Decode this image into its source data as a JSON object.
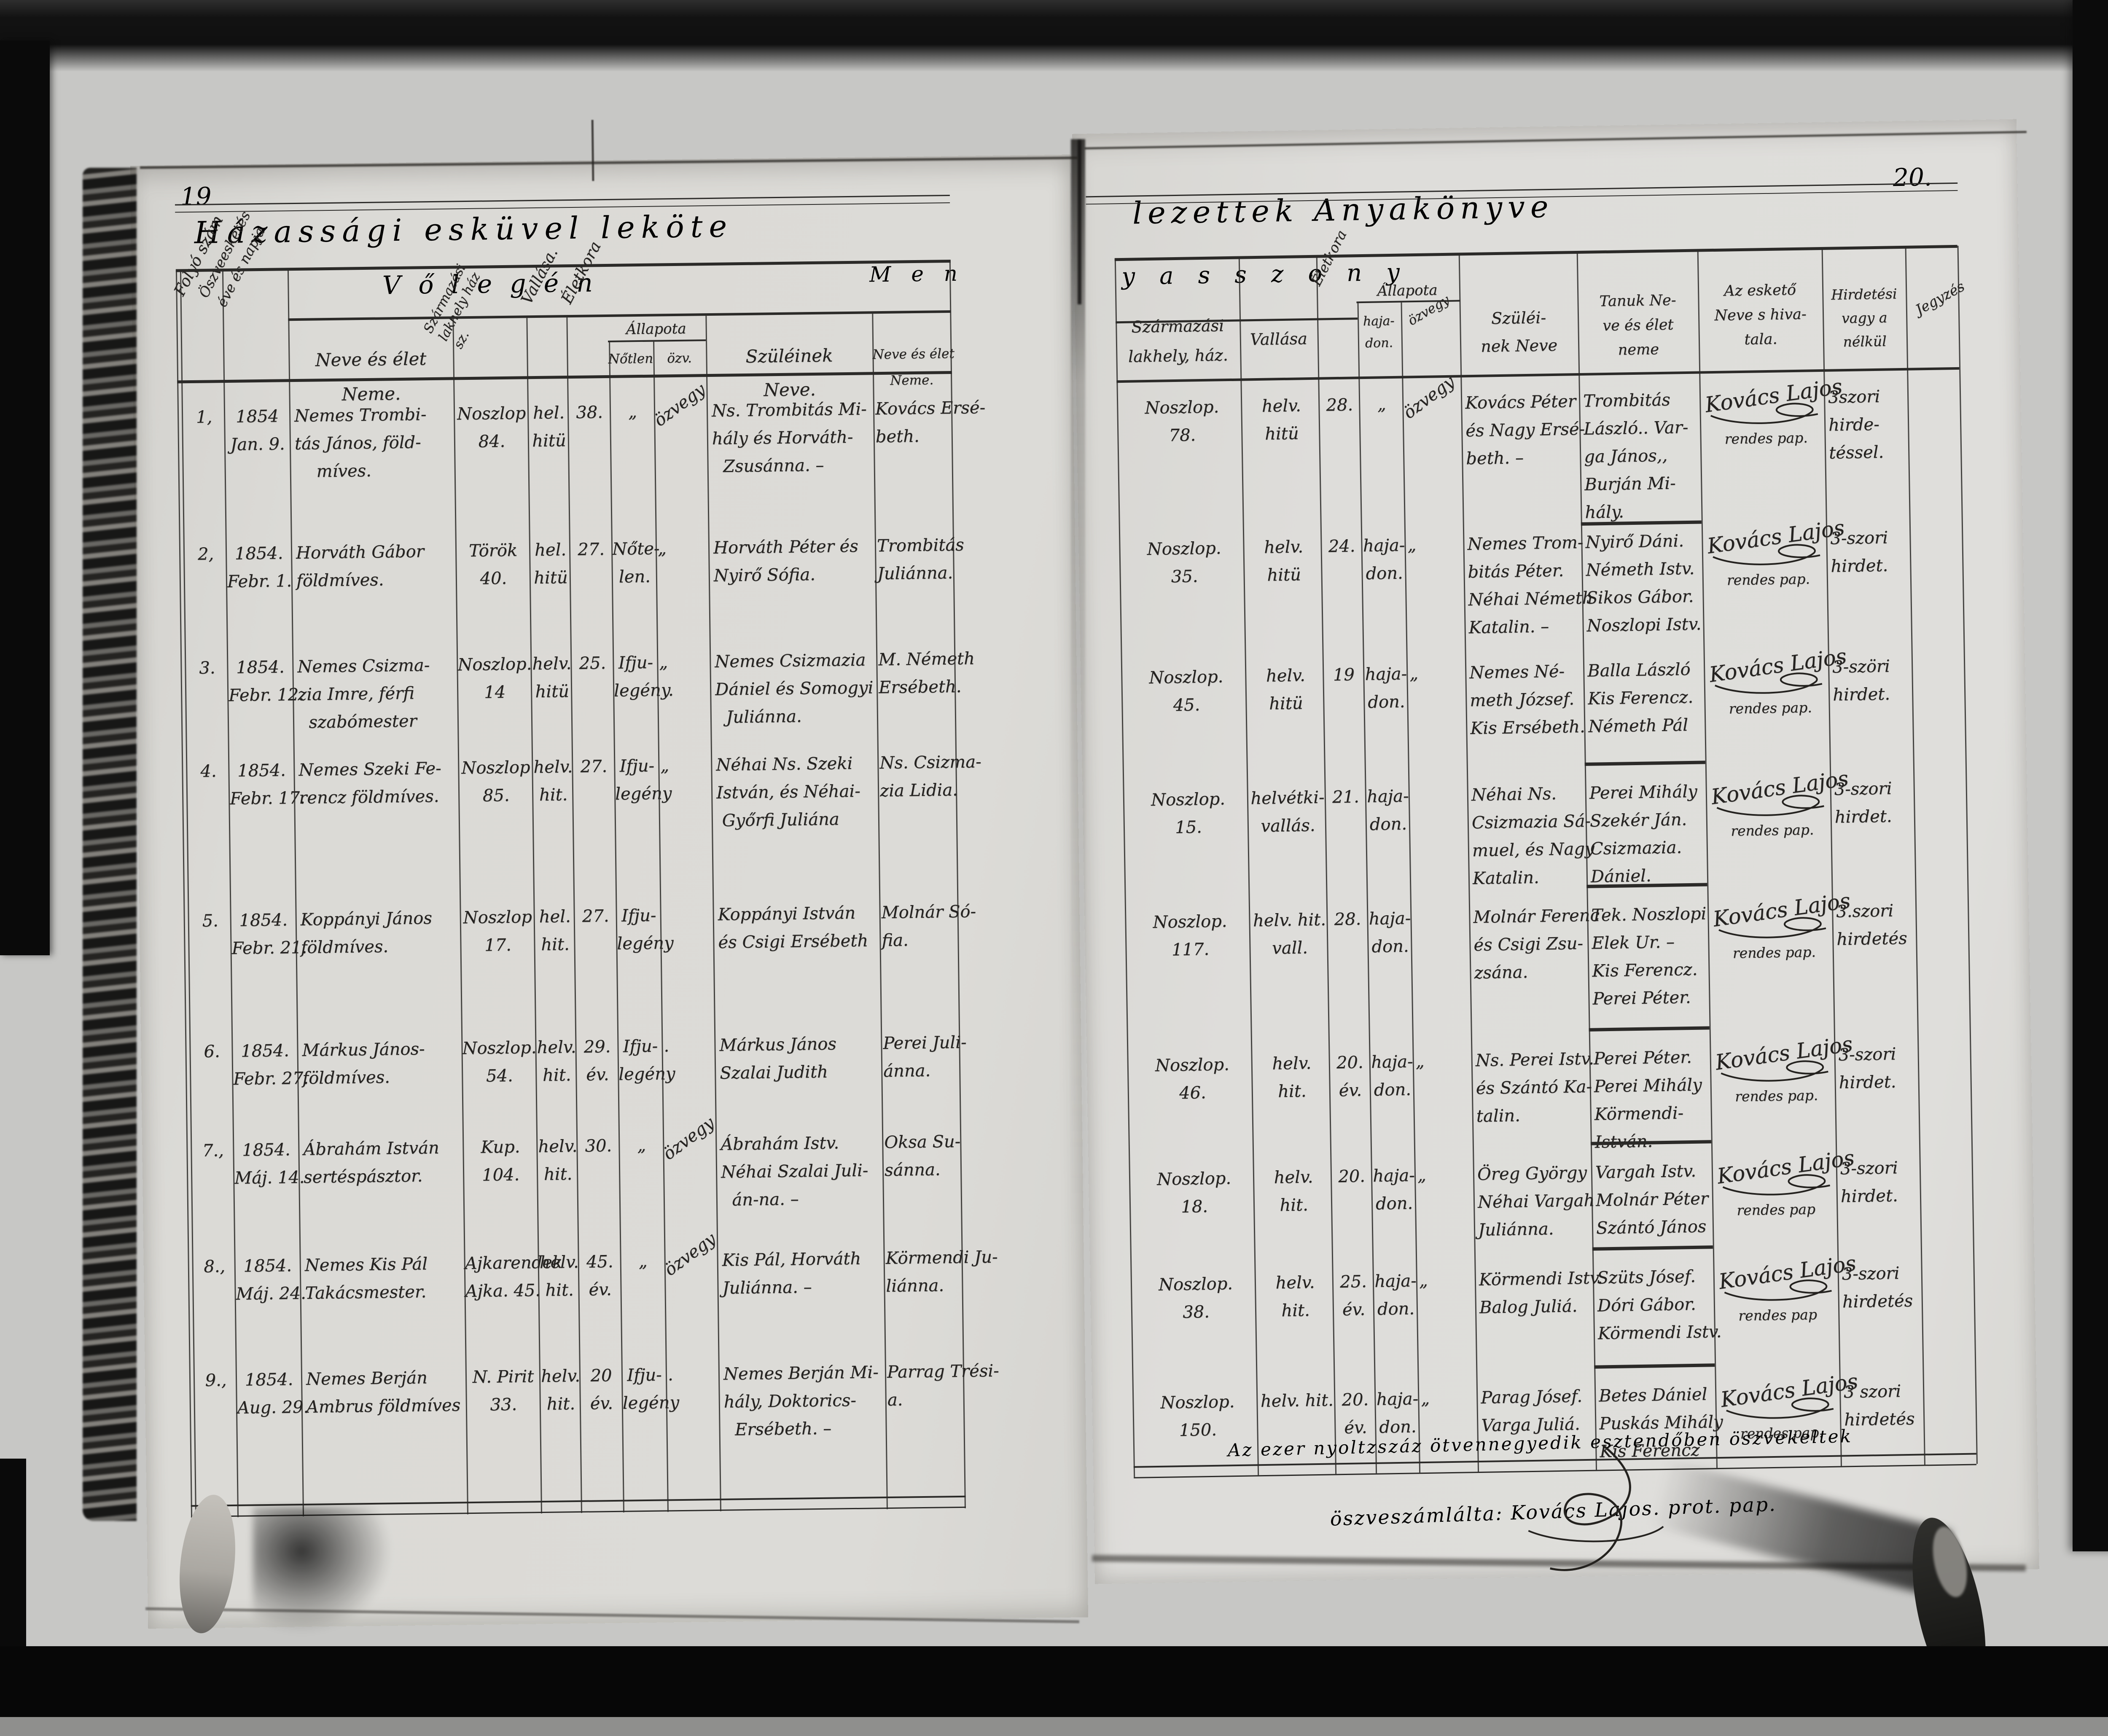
{
  "left_page": {
    "number": "19",
    "title_fragment": "Házassági esküvel leköte",
    "section_groom": "Vőlegén",
    "section_bride_start": "M e n",
    "headers": {
      "serial": "Folyó szám",
      "date": "Öszveesketés\néve és napja",
      "name": "Neve és élet\nNeme.",
      "origin": "Származási\nlakhely ház\nsz.",
      "religion": "Vallása.",
      "age": "Életkora",
      "status": "Állapota",
      "status_single": "Nőtlen",
      "status_widower": "özv.",
      "parents": "Szüléinek\nNeve.",
      "bride_name": "Neve és élet\nNeme."
    },
    "rows": [
      {
        "serial": "1,",
        "date": "1854\nJan. 9.",
        "name": "Nemes Trombi-\ntás János, föld-\n    míves.",
        "origin": "Noszlop\n84.",
        "religion": "hel.\nhitü",
        "age": "38.",
        "single": "„",
        "widower": "özvegy",
        "parents": "Ns. Trombitás Mi-\nhály és Horváth-\n  Zsusánna. –",
        "bride": "Kovács Ersé-\nbeth."
      },
      {
        "serial": "2,",
        "date": "1854.\nFebr. 1.",
        "name": "Horváth Gábor\nföldmíves.",
        "origin": "Török\n40.",
        "religion": "hel.\nhitü",
        "age": "27.",
        "single": "Nőte-\nlen.",
        "widower": "„",
        "parents": "Horváth Péter és\nNyirő Sófia.",
        "bride": "Trombitás\nJuliánna."
      },
      {
        "serial": "3.",
        "date": "1854.\nFebr. 12.",
        "name": "Nemes Csizma-\nzia Imre, férfi\n  szabómester",
        "origin": "Noszlop.\n14",
        "religion": "helv.\nhitü",
        "age": "25.",
        "single": "Ifju-\nlegény.",
        "widower": "„",
        "parents": "Nemes Csizmazia\nDániel és Somogyi\n  Juliánna.",
        "bride": "M. Németh\nErsébeth."
      },
      {
        "serial": "4.",
        "date": "1854.\nFebr. 17.",
        "name": "Nemes Szeki Fe-\nrencz földmíves.",
        "origin": "Noszlop\n85.",
        "religion": "helv.\nhit.",
        "age": "27.",
        "single": "Ifju-\nlegény",
        "widower": "„",
        "parents": "Néhai Ns. Szeki\nIstván, és Néhai-\n Győrfi Juliána",
        "bride": "Ns. Csizma-\nzia Lidia."
      },
      {
        "serial": "5.",
        "date": "1854.\nFebr. 21.",
        "name": "Koppányi János\nföldmíves.",
        "origin": "Noszlop\n17.",
        "religion": "hel.\nhit.",
        "age": "27.",
        "single": "Ifju-\nlegény",
        "widower": "",
        "parents": "Koppányi István\nés Csigi Ersébeth",
        "bride": "Molnár Só-\nfia."
      },
      {
        "serial": "6.",
        "date": "1854.\nFebr. 27.",
        "name": "Márkus János-\nföldmíves.",
        "origin": "Noszlop.\n54.",
        "religion": "helv.\nhit.",
        "age": "29.\név.",
        "single": "Ifju-\nlegény",
        "widower": ".",
        "parents": "Márkus János\nSzalai Judith",
        "bride": "Perei Juli-\nánna."
      },
      {
        "serial": "7.,",
        "date": "1854.\nMáj. 14.",
        "name": "Ábrahám István\nsertéspásztor.",
        "origin": "Kup.\n104.",
        "religion": "helv.\nhit.",
        "age": "30.",
        "single": "„",
        "widower": "özvegy",
        "parents": "Ábrahám Istv.\nNéhai Szalai Juli-\n  án-na. –",
        "bride": "Oksa Su-\nsánna."
      },
      {
        "serial": "8.,",
        "date": "1854.\nMáj. 24.",
        "name": "Nemes Kis Pál\nTakácsmester.",
        "origin": "Ajkarendek\nAjka. 45.",
        "religion": "helv.\nhit.",
        "age": "45.\név.",
        "single": "„",
        "widower": "özvegy",
        "parents": "Kis Pál, Horváth\nJuliánna. –",
        "bride": "Körmendi Ju-\nliánna."
      },
      {
        "serial": "9.,",
        "date": "1854.\nAug. 29.",
        "name": "Nemes Berján\nAmbrus földmíves",
        "origin": "N. Pirit\n33.",
        "religion": "helv.\nhit.",
        "age": "20\név.",
        "single": "Ifju-\nlegény",
        "widower": ".",
        "parents": "Nemes Berján Mi-\nhály, Doktorics-\n  Ersébeth. –",
        "bride": "Parrag Trési-\na."
      }
    ]
  },
  "right_page": {
    "number": "20.",
    "title_fragment": "lezettek Anyakönyve",
    "section_bride_end": "yasszony",
    "headers": {
      "origin": "Származási\nlakhely, ház.",
      "religion": "Vallása",
      "age": "Életkora",
      "status": "Állapota",
      "status_maiden": "haja-\ndon.",
      "status_widow": "özvegy",
      "parents": "Szüléi-\nnek Neve",
      "witnesses": "Tanuk Ne-\nve és élet\nneme",
      "officiant": "Az eskető\nNeve s hiva-\ntala.",
      "announcement": "Hirdetési\nvagy a\nnélkül",
      "notes": "Jegyzés"
    },
    "rows": [
      {
        "origin": "Noszlop.\n78.",
        "religion": "helv.\nhitü",
        "age": "28.",
        "maiden": "„",
        "widow": "özvegy",
        "parents": "Kovács Péter\nés Nagy Ersé-\nbeth. –",
        "witnesses": "Trombitás\nLászló.. Var-\nga János,,\nBurján Mi-\nhály.",
        "officiant_name": "Kovács Lajos",
        "officiant_title": "rendes pap.",
        "announcement": "3szori\nhirde-\ntéssel.",
        "notes": ""
      },
      {
        "origin": "Noszlop.\n35.",
        "religion": "helv.\nhitü",
        "age": "24.",
        "maiden": "haja-\ndon.",
        "widow": "„",
        "parents": "Nemes Trom-\nbitás Péter.\nNéhai Németh\nKatalin. –",
        "witnesses": "Nyirő Dáni.\nNémeth Istv.\nSikos Gábor.\nNoszlopi Istv.",
        "officiant_name": "Kovács Lajos",
        "officiant_title": "rendes pap.",
        "announcement": "3-szori\nhirdet.",
        "notes": ""
      },
      {
        "origin": "Noszlop.\n45.",
        "religion": "helv.\nhitü",
        "age": "19",
        "maiden": "haja-\ndon.",
        "widow": "„",
        "parents": "Nemes Né-\nmeth József.\nKis Ersébeth.",
        "witnesses": "Balla László\nKis Ferencz.\nNémeth Pál",
        "officiant_name": "Kovács Lajos",
        "officiant_title": "rendes pap.",
        "announcement": "3-szöri\nhirdet.",
        "notes": ""
      },
      {
        "origin": "Noszlop.\n15.",
        "religion": "helvétki-\nvallás.",
        "age": "21.",
        "maiden": "haja-\ndon.",
        "widow": "",
        "parents": "Néhai Ns.\nCsizmazia Sá-\nmuel, és Nagy\nKatalin.",
        "witnesses": "Perei Mihály\nSzekér Ján.\nCsizmazia.\nDániel.",
        "officiant_name": "Kovács Lajos",
        "officiant_title": "rendes pap.",
        "announcement": "3-szori\nhirdet.",
        "notes": ""
      },
      {
        "origin": "Noszlop.\n117.",
        "religion": "helv. hit.\nvall.",
        "age": "28.",
        "maiden": "haja-\ndon.",
        "widow": "",
        "parents": "Molnár Ferenc\nés Csigi Zsu-\nzsána.",
        "witnesses": "Tek. Noszlopi\nElek Ur. –\nKis Ferencz.\nPerei Péter.",
        "officiant_name": "Kovács Lajos",
        "officiant_title": "rendes pap.",
        "announcement": "3.szori\nhirdetés",
        "notes": ""
      },
      {
        "origin": "Noszlop.\n46.",
        "religion": "helv.\nhit.",
        "age": "20.\név.",
        "maiden": "haja-\ndon.",
        "widow": "„",
        "parents": "Ns. Perei Istv.\nés Szántó Ka-\ntalin.",
        "witnesses": "Perei Péter.\nPerei Mihály\nKörmendi-\nIstván.",
        "officiant_name": "Kovács Lajos",
        "officiant_title": "rendes pap.",
        "announcement": "3-szori\nhirdet.",
        "notes": ""
      },
      {
        "origin": "Noszlop.\n18.",
        "religion": "helv.\nhit.",
        "age": "20.",
        "maiden": "haja-\ndon.",
        "widow": "„",
        "parents": "Öreg György\nNéhai Vargah\nJuliánna.",
        "witnesses": "Vargah Istv.\nMolnár Péter\nSzántó János",
        "officiant_name": "Kovács Lajos",
        "officiant_title": "rendes pap",
        "announcement": "3-szori\nhirdet.",
        "notes": ""
      },
      {
        "origin": "Noszlop.\n38.",
        "religion": "helv.\nhit.",
        "age": "25.\név.",
        "maiden": "haja-\ndon.",
        "widow": "„",
        "parents": "Körmendi Istv.\nBalog Juliá.",
        "witnesses": "Szüts Jósef.\nDóri Gábor.\nKörmendi Istv.",
        "officiant_name": "Kovács Lajos",
        "officiant_title": "rendes pap",
        "announcement": "3-szori\nhirdetés",
        "notes": ""
      },
      {
        "origin": "Noszlop.\n150.",
        "religion": "helv. hit.",
        "age": "20.\név.",
        "maiden": "haja-\ndon.",
        "widow": "„",
        "parents": "Parag Jósef.\nVarga Juliá.",
        "witnesses": "Betes Dániel\nPuskás Mihály\nKis Ferencz",
        "officiant_name": "Kovács Lajos",
        "officiant_title": "rendes pap.",
        "announcement": "3 szori\nhirdetés",
        "notes": ""
      }
    ],
    "footer_line": "Az ezer nyoltzszáz ötvennegyedik esztendőben öszvekeltek",
    "signature_line": "öszveszámlálta: Kovács Lajos. prot. pap."
  }
}
